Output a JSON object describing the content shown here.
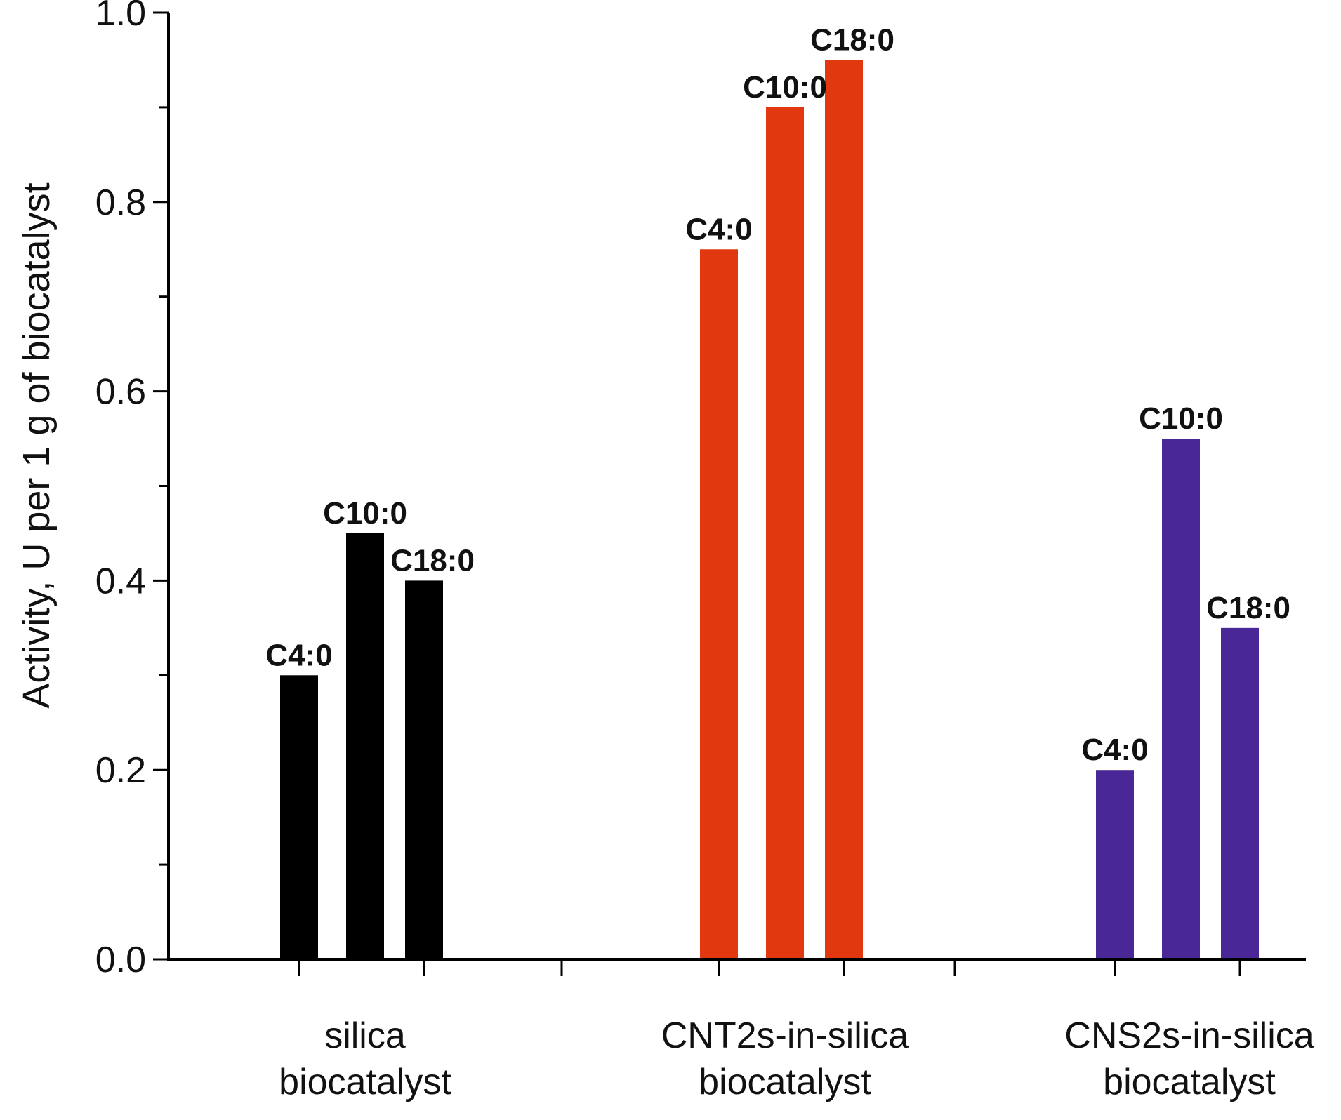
{
  "chart_data": {
    "type": "bar",
    "title": "",
    "xlabel": "",
    "ylabel": "Activity, U per 1 g of biocatalyst",
    "ylim": [
      0,
      1.0
    ],
    "y_major_ticks": [
      "0.0",
      "0.2",
      "0.4",
      "0.6",
      "0.8",
      "1.0"
    ],
    "y_minor_step": 0.1,
    "groups": [
      {
        "name": "silica biocatalyst",
        "label_lines": [
          "silica",
          "biocatalyst"
        ],
        "color": "#000000",
        "bars": [
          {
            "label": "C4:0",
            "value": 0.3
          },
          {
            "label": "C10:0",
            "value": 0.45
          },
          {
            "label": "C18:0",
            "value": 0.4
          }
        ]
      },
      {
        "name": "CNT2s-in-silica biocatalyst",
        "label_lines": [
          "CNT2s-in-silica",
          "biocatalyst"
        ],
        "color": "#e2380f",
        "bars": [
          {
            "label": "C4:0",
            "value": 0.75
          },
          {
            "label": "C10:0",
            "value": 0.9
          },
          {
            "label": "C18:0",
            "value": 0.95
          }
        ]
      },
      {
        "name": "CNS2s-in-silica biocatalyst",
        "label_lines": [
          "CNS2s-in-silica",
          "biocatalyst"
        ],
        "color": "#4a2796",
        "bars": [
          {
            "label": "C4:0",
            "value": 0.2
          },
          {
            "label": "C10:0",
            "value": 0.55
          },
          {
            "label": "C18:0",
            "value": 0.35
          }
        ]
      }
    ]
  }
}
